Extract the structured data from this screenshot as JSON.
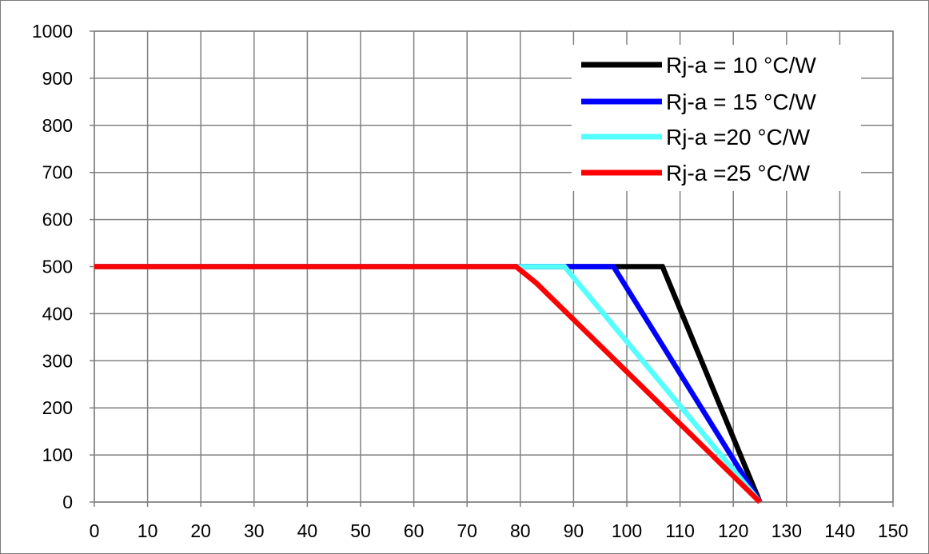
{
  "chart_data": {
    "type": "line",
    "title": "",
    "xlabel": "",
    "ylabel": "",
    "xlim": [
      0,
      150
    ],
    "ylim": [
      0,
      1000
    ],
    "x_ticks": [
      "0",
      "10",
      "20",
      "30",
      "40",
      "50",
      "60",
      "70",
      "80",
      "90",
      "100",
      "110",
      "120",
      "130",
      "140",
      "150"
    ],
    "y_ticks": [
      "0",
      "100",
      "200",
      "300",
      "400",
      "500",
      "600",
      "700",
      "800",
      "900",
      "1000"
    ],
    "grid": true,
    "legend_position": "top-right",
    "series": [
      {
        "name": "Rj-a = 10 °C/W",
        "color": "#000000",
        "x": [
          0,
          106.7,
          125
        ],
        "y": [
          500,
          500,
          0
        ]
      },
      {
        "name": "Rj-a = 15 °C/W",
        "color": "#0000ff",
        "x": [
          0,
          97.5,
          125
        ],
        "y": [
          500,
          500,
          0
        ]
      },
      {
        "name": "Rj-a =20 °C/W",
        "color": "#55ffff",
        "x": [
          0,
          88.3,
          125
        ],
        "y": [
          500,
          500,
          0
        ]
      },
      {
        "name": "Rj-a =25 °C/W",
        "color": "#ff0000",
        "x": [
          0,
          79.2,
          83,
          125
        ],
        "y": [
          500,
          500,
          465,
          0
        ]
      }
    ]
  }
}
